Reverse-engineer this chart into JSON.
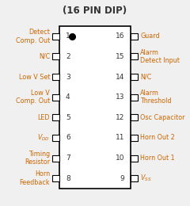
{
  "title": "(16 PIN DIP)",
  "title_fontsize": 8.5,
  "left_pins": [
    {
      "num": 1,
      "label": "Detect\nComp. Out"
    },
    {
      "num": 2,
      "label": "N/C"
    },
    {
      "num": 3,
      "label": "Low V Set"
    },
    {
      "num": 4,
      "label": "Low V\nComp. Out"
    },
    {
      "num": 5,
      "label": "LED"
    },
    {
      "num": 6,
      "label": "VDD"
    },
    {
      "num": 7,
      "label": "Timing\nResistor"
    },
    {
      "num": 8,
      "label": "Horn\nFeedback"
    }
  ],
  "right_pins": [
    {
      "num": 16,
      "label": "Guard"
    },
    {
      "num": 15,
      "label": "Alarm\nDetect Input"
    },
    {
      "num": 14,
      "label": "N/C"
    },
    {
      "num": 13,
      "label": "Alarm\nThreshold"
    },
    {
      "num": 12,
      "label": "Osc Capacitor"
    },
    {
      "num": 11,
      "label": "Horn Out 2"
    },
    {
      "num": 10,
      "label": "Horn Out 1"
    },
    {
      "num": 9,
      "label": "VSS"
    }
  ],
  "body_color": "#ffffff",
  "border_color": "#000000",
  "text_color": "#333333",
  "dot_color": "#000000",
  "font_color_label": "#cc6600",
  "font_color_num": "#333333",
  "font_size_pin_label": 5.8,
  "font_size_num": 6.5,
  "bg_color": "#f0f0f0"
}
